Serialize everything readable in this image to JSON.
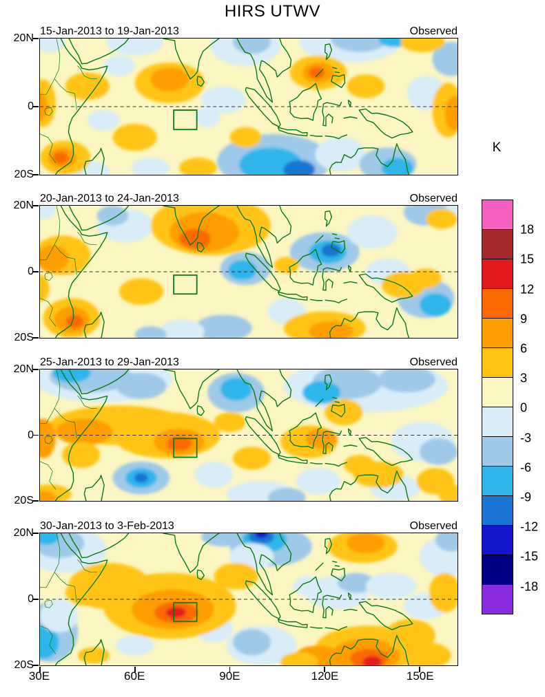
{
  "chart_data": {
    "type": "filled-contour-map",
    "title": "HIRS UTWV",
    "panels": [
      {
        "date_label": "15-Jan-2013 to 19-Jan-2013",
        "source_label": "Observed",
        "field": [
          [
            33,
            19,
            5,
            3,
            "b0"
          ],
          [
            60,
            19,
            9,
            4,
            "b0"
          ],
          [
            55,
            12,
            5,
            3,
            "b0"
          ],
          [
            95,
            18,
            11,
            6,
            "b0"
          ],
          [
            97,
            19,
            6,
            3.5,
            "b1"
          ],
          [
            128,
            19,
            16,
            6,
            "b0"
          ],
          [
            131,
            20,
            9,
            4,
            "b1"
          ],
          [
            142,
            20,
            5,
            2.5,
            "b2"
          ],
          [
            160,
            14,
            6,
            5,
            "b1"
          ],
          [
            88,
            2,
            7,
            4,
            "b0"
          ],
          [
            83,
            -3,
            4,
            3,
            "b0"
          ],
          [
            104,
            -16,
            18,
            8,
            "b1"
          ],
          [
            103,
            -17,
            10,
            5,
            "b2"
          ],
          [
            112,
            -18.5,
            5,
            2.8,
            "b3"
          ],
          [
            125,
            -14,
            8,
            5,
            "b0"
          ],
          [
            140,
            -17,
            9,
            5,
            "b1"
          ],
          [
            143,
            -18,
            5,
            3,
            "b2"
          ],
          [
            152,
            4,
            6,
            5,
            "b0"
          ],
          [
            65,
            -18,
            6,
            3,
            "b0"
          ],
          [
            50,
            -4,
            5,
            3,
            "b0"
          ],
          [
            46,
            -19,
            6,
            3,
            "b0"
          ],
          [
            45,
            6,
            7,
            4,
            "g"
          ],
          [
            31,
            1,
            4,
            7,
            "g"
          ],
          [
            30,
            0,
            2.5,
            4,
            "o"
          ],
          [
            71,
            7,
            11,
            6,
            "g"
          ],
          [
            71,
            8,
            6,
            3.5,
            "o"
          ],
          [
            38,
            -15,
            8,
            5,
            "g"
          ],
          [
            37,
            -15,
            4.5,
            3,
            "o"
          ],
          [
            36.5,
            -15,
            2.3,
            1.8,
            "do"
          ],
          [
            60,
            -9,
            7,
            4,
            "g"
          ],
          [
            80,
            -18,
            6,
            3,
            "g"
          ],
          [
            95,
            -9,
            5,
            3,
            "g"
          ],
          [
            118,
            10,
            9,
            5,
            "g"
          ],
          [
            118,
            10,
            5,
            3,
            "o"
          ],
          [
            117.5,
            10,
            2.5,
            1.7,
            "do"
          ],
          [
            133,
            6,
            6,
            3.5,
            "g"
          ],
          [
            151,
            19,
            7,
            3,
            "g"
          ],
          [
            159,
            -1,
            5,
            8,
            "g"
          ],
          [
            161,
            -2,
            3,
            5,
            "o"
          ]
        ]
      },
      {
        "date_label": "20-Jan-2013 to 24-Jan-2013",
        "source_label": "Observed",
        "field": [
          [
            57,
            14,
            9,
            5,
            "b0"
          ],
          [
            53,
            17,
            5,
            3,
            "b1"
          ],
          [
            31,
            19,
            4,
            3,
            "b0"
          ],
          [
            158,
            19,
            5,
            3,
            "b0"
          ],
          [
            90,
            11,
            6,
            4,
            "b0"
          ],
          [
            95,
            1,
            8,
            5,
            "b1"
          ],
          [
            94,
            0.5,
            4.5,
            3,
            "b2"
          ],
          [
            120,
            6,
            11,
            6,
            "b1"
          ],
          [
            121,
            6,
            6,
            3.5,
            "b2"
          ],
          [
            122,
            6.5,
            3,
            2,
            "b3"
          ],
          [
            135,
            12,
            8,
            5,
            "b0"
          ],
          [
            152,
            18,
            7,
            4,
            "b1"
          ],
          [
            140,
            0,
            7,
            4,
            "b0"
          ],
          [
            152,
            -8,
            9,
            6,
            "b1"
          ],
          [
            155,
            -10,
            5,
            3.5,
            "b2"
          ],
          [
            88,
            -17,
            9,
            4,
            "b1"
          ],
          [
            75,
            -18,
            7,
            3.5,
            "b0"
          ],
          [
            65,
            -19,
            5,
            2.5,
            "b1"
          ],
          [
            108,
            -12,
            6,
            4,
            "b0"
          ],
          [
            84,
            14,
            19,
            9,
            "g"
          ],
          [
            82,
            12,
            11,
            6,
            "o"
          ],
          [
            79,
            10,
            5,
            3,
            "do"
          ],
          [
            37,
            5,
            9,
            6,
            "g"
          ],
          [
            34,
            4,
            5,
            4,
            "o"
          ],
          [
            40,
            -14,
            9,
            6,
            "g"
          ],
          [
            40,
            -14.5,
            5.5,
            4,
            "o"
          ],
          [
            41,
            -15,
            2.8,
            2,
            "do"
          ],
          [
            62,
            -6,
            7,
            4,
            "g"
          ],
          [
            120,
            -17,
            13,
            5,
            "g"
          ],
          [
            122,
            -18,
            7,
            3,
            "o"
          ],
          [
            145,
            -4,
            7,
            4,
            "g"
          ],
          [
            152,
            -2,
            5,
            3,
            "g"
          ],
          [
            157,
            16,
            5,
            3,
            "g"
          ],
          [
            108,
            2,
            4,
            2.5,
            "g"
          ],
          [
            30,
            -5,
            3,
            4,
            "g"
          ]
        ]
      },
      {
        "date_label": "25-Jan-2013 to 29-Jan-2013",
        "source_label": "Observed",
        "field": [
          [
            50,
            17,
            22,
            7,
            "b0"
          ],
          [
            46,
            18,
            13,
            5,
            "b1"
          ],
          [
            40,
            19,
            6,
            3,
            "b2"
          ],
          [
            62,
            15,
            8,
            4,
            "b1"
          ],
          [
            92,
            13,
            9,
            6,
            "b1"
          ],
          [
            92,
            14,
            5,
            3.5,
            "b2"
          ],
          [
            133,
            15,
            26,
            8,
            "b0"
          ],
          [
            127,
            16,
            11,
            5,
            "b1"
          ],
          [
            146,
            17,
            9,
            4,
            "b1"
          ],
          [
            119,
            13,
            6,
            3.5,
            "b2"
          ],
          [
            151,
            -2,
            10,
            6,
            "b0"
          ],
          [
            156,
            -5,
            6,
            4,
            "b1"
          ],
          [
            62,
            -13,
            9,
            5,
            "b1"
          ],
          [
            62,
            -13,
            5,
            3,
            "b2"
          ],
          [
            62,
            -13,
            2.2,
            1.5,
            "b3"
          ],
          [
            100,
            -18,
            11,
            4,
            "b0"
          ],
          [
            108,
            -19,
            6,
            3,
            "b1"
          ],
          [
            85,
            -12,
            6,
            4,
            "b0"
          ],
          [
            118,
            -14,
            7,
            4,
            "b0"
          ],
          [
            142,
            -16,
            8,
            4,
            "b0"
          ],
          [
            55,
            3,
            22,
            6,
            "g"
          ],
          [
            44,
            1,
            9,
            4,
            "o"
          ],
          [
            31,
            -1,
            4,
            6,
            "o"
          ],
          [
            70,
            0,
            17,
            7,
            "g"
          ],
          [
            74,
            -2,
            8,
            4,
            "o"
          ],
          [
            74,
            -2.5,
            4,
            2.2,
            "do"
          ],
          [
            43,
            -6,
            6,
            4,
            "g"
          ],
          [
            33,
            -18,
            7,
            3,
            "g"
          ],
          [
            31,
            -19,
            4,
            2,
            "o"
          ],
          [
            97,
            -7,
            6,
            3.5,
            "g"
          ],
          [
            115,
            -2,
            9,
            5,
            "g"
          ],
          [
            119,
            -1,
            5,
            3,
            "o"
          ],
          [
            126,
            7,
            6,
            4,
            "g"
          ],
          [
            90,
            4,
            5,
            3,
            "g"
          ],
          [
            137,
            -12,
            8,
            4,
            "g"
          ],
          [
            131,
            -9,
            5,
            3,
            "g"
          ],
          [
            155,
            -14,
            6,
            4,
            "g"
          ],
          [
            160,
            -18,
            4,
            3,
            "g"
          ]
        ]
      },
      {
        "date_label": "30-Jan-2013 to 3-Feb-2013",
        "source_label": "Observed",
        "field": [
          [
            38,
            15,
            13,
            7,
            "b0"
          ],
          [
            36,
            17,
            8,
            4.5,
            "b1"
          ],
          [
            32,
            19,
            4,
            2.5,
            "b2"
          ],
          [
            33,
            -10,
            9,
            9,
            "b1"
          ],
          [
            31,
            -13,
            5,
            5,
            "b2"
          ],
          [
            36,
            -5,
            6,
            5,
            "b0"
          ],
          [
            60,
            -14,
            6,
            3,
            "b0"
          ],
          [
            88,
            19,
            7,
            3,
            "b1"
          ],
          [
            103,
            16,
            13,
            6,
            "b1"
          ],
          [
            101,
            18,
            7,
            4,
            "b2"
          ],
          [
            100,
            19,
            4,
            2.2,
            "b3"
          ],
          [
            100,
            19.7,
            2,
            1.2,
            "b4"
          ],
          [
            97,
            13,
            7,
            4,
            "b0"
          ],
          [
            158,
            13,
            8,
            6,
            "b0"
          ],
          [
            160,
            18,
            5,
            3.5,
            "b1"
          ],
          [
            152,
            -2,
            7,
            4,
            "b0"
          ],
          [
            124,
            2,
            10,
            5,
            "b0"
          ],
          [
            130,
            5,
            6,
            3,
            "b1"
          ],
          [
            141,
            4,
            8,
            4,
            "b0"
          ],
          [
            115,
            4,
            5,
            3,
            "b0"
          ],
          [
            100,
            -14,
            11,
            6,
            "b0"
          ],
          [
            97,
            -13,
            6,
            4,
            "b1"
          ],
          [
            85,
            -9,
            6,
            4,
            "b0"
          ],
          [
            52,
            4,
            13,
            7,
            "g"
          ],
          [
            45,
            2,
            7,
            4,
            "g"
          ],
          [
            71,
            -2,
            21,
            10,
            "g"
          ],
          [
            72,
            -3,
            13,
            6,
            "o"
          ],
          [
            73,
            -4,
            7,
            3.2,
            "do"
          ],
          [
            73,
            -4,
            3.2,
            1.6,
            "r"
          ],
          [
            92,
            7,
            7,
            4,
            "g"
          ],
          [
            132,
            16,
            11,
            5,
            "g"
          ],
          [
            133,
            17,
            6,
            3,
            "o"
          ],
          [
            134,
            -15,
            17,
            7,
            "g"
          ],
          [
            133,
            -17,
            11,
            5,
            "o"
          ],
          [
            134,
            -18,
            6,
            3,
            "do"
          ],
          [
            135,
            -19,
            3,
            1.8,
            "r"
          ],
          [
            147,
            -11,
            8,
            5,
            "g"
          ],
          [
            118,
            -18,
            8,
            4,
            "o"
          ],
          [
            112,
            -19,
            6,
            3,
            "g"
          ],
          [
            152,
            -17,
            8,
            4,
            "g"
          ],
          [
            158,
            2,
            5,
            6,
            "g"
          ],
          [
            47,
            -17,
            5,
            2.5,
            "g"
          ]
        ]
      }
    ],
    "axes": {
      "x_ticks": [
        "30E",
        "60E",
        "90E",
        "120E",
        "150E"
      ],
      "x_tick_lons": [
        30,
        60,
        90,
        120,
        150
      ],
      "y_ticks": [
        "20N",
        "0",
        "20S"
      ],
      "lon_range": [
        30,
        162
      ],
      "lat_range": [
        -20,
        20
      ]
    },
    "colorbar": {
      "unit": "K",
      "ticks": [
        18,
        15,
        12,
        9,
        6,
        3,
        0,
        -3,
        -6,
        -9,
        -12,
        -15,
        -18
      ],
      "colors": [
        "#F660C1",
        "#A52A2A",
        "#E31A1C",
        "#FB6A02",
        "#FF9E00",
        "#FFC412",
        "#FBF6C2",
        "#D8EDF8",
        "#9FC9E8",
        "#2EB6EA",
        "#1976D2",
        "#1515D0",
        "#000080",
        "#8A2BE2"
      ]
    },
    "palette": {
      "bg": "#FBF6C2",
      "g": "#FFC412",
      "o": "#FF9E00",
      "do": "#FB6A02",
      "r": "#E31A1C",
      "b0": "#D8EDF8",
      "b1": "#9FC9E8",
      "b2": "#2EB6EA",
      "b3": "#1976D2",
      "b4": "#1515D0"
    },
    "box_region": {
      "lon_min": 72.3,
      "lon_max": 79.6,
      "lat_min": -6.7,
      "lat_max": -1.0
    },
    "map_outline_color": "#0B7A12"
  }
}
